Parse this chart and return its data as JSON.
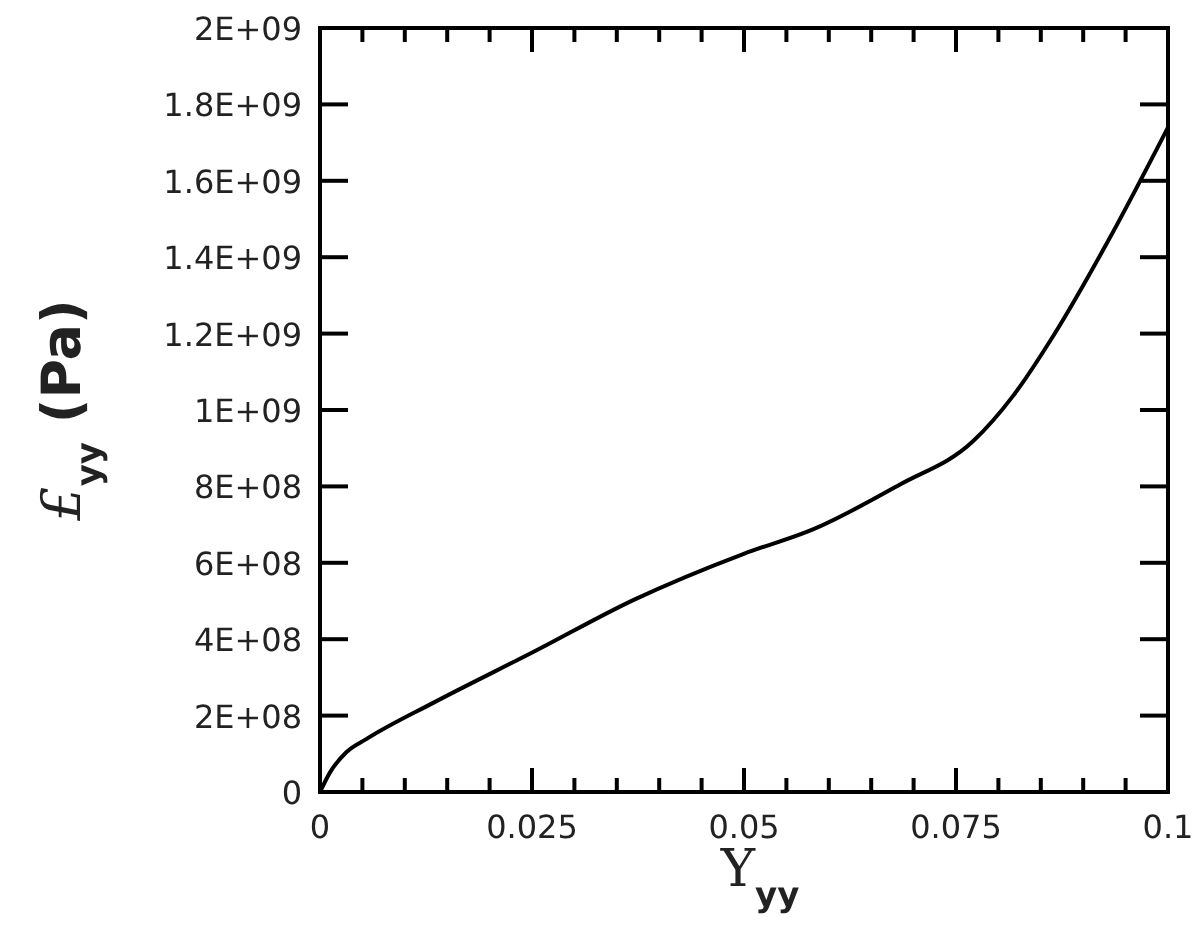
{
  "chart_data": {
    "type": "line",
    "xlabel": "Υ$_{yy}$",
    "ylabel": "£$_{yy}$ (Pa)",
    "x": [
      0,
      0.0012,
      0.0031,
      0.0055,
      0.0134,
      0.0252,
      0.037,
      0.0499,
      0.0582,
      0.0684,
      0.077,
      0.0818,
      0.0865,
      0.0928,
      0.1
    ],
    "series": [
      {
        "color": "#000000",
        "values": [
          0,
          52000000,
          104000000,
          139000000,
          234000000,
          367000000,
          503000000,
          623000000,
          688000000,
          805000000,
          918000000,
          1039000000,
          1195000000,
          1437000000,
          1740000000
        ]
      }
    ],
    "xlim": [
      0,
      0.1
    ],
    "ylim": [
      0,
      2000000000
    ],
    "xticks": [
      0,
      {
        "value": 0.005,
        "label": null
      },
      {
        "value": 0.01,
        "label": null
      },
      {
        "value": 0.015,
        "label": null
      },
      {
        "value": 0.02,
        "label": null
      },
      0.025,
      {
        "value": 0.03,
        "label": null
      },
      {
        "value": 0.035,
        "label": null
      },
      {
        "value": 0.04,
        "label": null
      },
      {
        "value": 0.045,
        "label": null
      },
      0.05,
      {
        "value": 0.055,
        "label": null
      },
      {
        "value": 0.06,
        "label": null
      },
      {
        "value": 0.065,
        "label": null
      },
      {
        "value": 0.07,
        "label": null
      },
      0.075,
      {
        "value": 0.08,
        "label": null
      },
      {
        "value": 0.085,
        "label": null
      },
      {
        "value": 0.09,
        "label": null
      },
      {
        "value": 0.095,
        "label": null
      },
      0.1
    ],
    "yticks": [
      0,
      {
        "value": 200000000,
        "label": "2E+08"
      },
      {
        "value": 400000000,
        "label": "4E+08"
      },
      {
        "value": 600000000,
        "label": "6E+08"
      },
      {
        "value": 800000000,
        "label": "8E+08"
      },
      {
        "value": 1000000000,
        "label": "1E+09"
      },
      {
        "value": 1200000000,
        "label": "1.2E+09"
      },
      {
        "value": 1400000000,
        "label": "1.4E+09"
      },
      {
        "value": 1600000000,
        "label": "1.6E+09"
      },
      {
        "value": 1800000000,
        "label": "1.8E+09"
      },
      {
        "value": 2000000000,
        "label": "2E+09"
      }
    ],
    "line_style": "solid"
  }
}
